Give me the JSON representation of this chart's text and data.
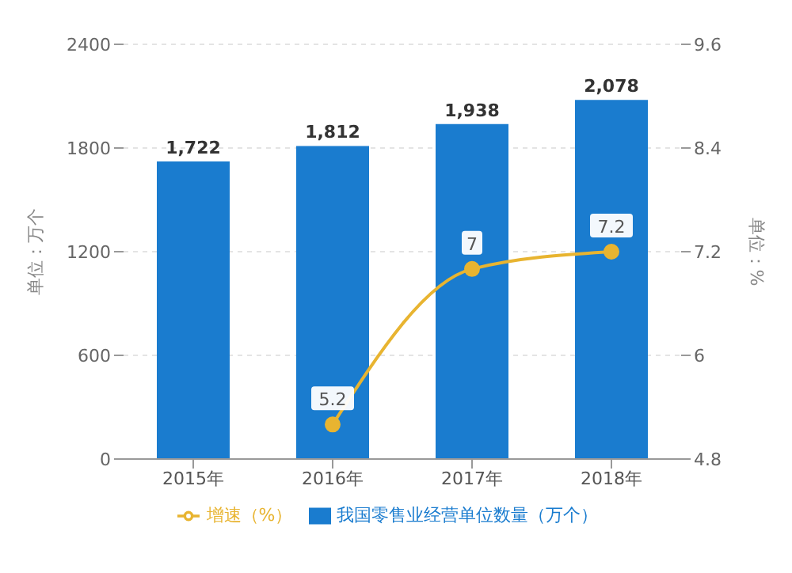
{
  "chart_data": {
    "type": "bar",
    "categories": [
      "2015年",
      "2016年",
      "2017年",
      "2018年"
    ],
    "series": [
      {
        "name": "我国零售业经营单位数量（万个）",
        "color": "#1a7ccf",
        "values": [
          1722,
          1812,
          1938,
          2078
        ],
        "value_labels": [
          "1,722",
          "1,812",
          "1,938",
          "2,078"
        ]
      },
      {
        "name": "增速（%）",
        "type": "line",
        "axis": "y2",
        "color": "#e8b430",
        "values": [
          null,
          5.2,
          7,
          7.2
        ],
        "value_labels": [
          null,
          "5.2",
          "7",
          "7.2"
        ]
      }
    ],
    "ylabel": "单位：万个",
    "y2label": "单位：%",
    "ylim": [
      0,
      2400
    ],
    "yticks": [
      0,
      600,
      1200,
      1800,
      2400
    ],
    "y2lim": [
      4.8,
      9.6
    ],
    "y2ticks": [
      4.8,
      6,
      7.2,
      8.4,
      9.6
    ],
    "grid": "y",
    "legend": "bottom",
    "marker": "circle"
  }
}
